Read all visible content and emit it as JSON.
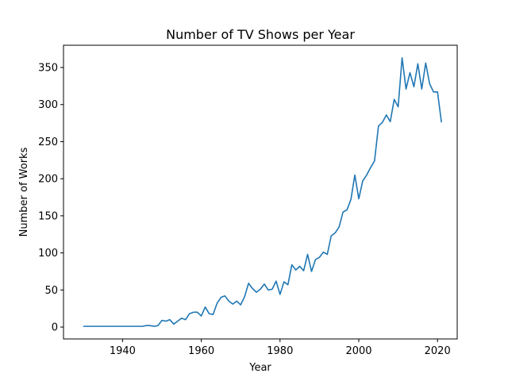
{
  "chart_data": {
    "type": "line",
    "title": "Number of TV Shows per Year",
    "xlabel": "Year",
    "ylabel": "Number of Works",
    "xlim": [
      1925,
      2025
    ],
    "ylim": [
      -16,
      380
    ],
    "xticks": [
      1940,
      1960,
      1980,
      2000,
      2020
    ],
    "yticks": [
      0,
      50,
      100,
      150,
      200,
      250,
      300,
      350
    ],
    "grid": false,
    "line_color": "#1f77b4",
    "series": [
      {
        "x": [
          1930,
          1933,
          1935,
          1938,
          1940,
          1943,
          1945,
          1946,
          1947,
          1948,
          1949,
          1950,
          1951,
          1952,
          1953,
          1954,
          1955,
          1956,
          1957,
          1958,
          1959,
          1960,
          1961,
          1962,
          1963,
          1964,
          1965,
          1966,
          1967,
          1968,
          1969,
          1970,
          1971,
          1972,
          1973,
          1974,
          1975,
          1976,
          1977,
          1978,
          1979,
          1980,
          1981,
          1982,
          1983,
          1984,
          1985,
          1986,
          1987,
          1988,
          1989,
          1990,
          1991,
          1992,
          1993,
          1994,
          1995,
          1996,
          1997,
          1998,
          1999,
          2000,
          2001,
          2002,
          2003,
          2004,
          2005,
          2006,
          2007,
          2008,
          2009,
          2010,
          2011,
          2012,
          2013,
          2014,
          2015,
          2016,
          2017,
          2018,
          2019,
          2020,
          2021
        ],
        "y": [
          1,
          1,
          1,
          1,
          1,
          1,
          1,
          2,
          2,
          1,
          2,
          9,
          8,
          10,
          4,
          8,
          12,
          10,
          18,
          20,
          20,
          15,
          27,
          18,
          17,
          32,
          40,
          42,
          35,
          31,
          35,
          30,
          41,
          59,
          52,
          47,
          51,
          58,
          50,
          51,
          62,
          44,
          61,
          57,
          84,
          77,
          82,
          76,
          98,
          75,
          91,
          94,
          101,
          98,
          123,
          127,
          135,
          155,
          158,
          172,
          205,
          173,
          197,
          205,
          215,
          224,
          271,
          276,
          286,
          277,
          307,
          297,
          363,
          321,
          343,
          324,
          355,
          321,
          356,
          328,
          317,
          317,
          276
        ]
      }
    ]
  }
}
